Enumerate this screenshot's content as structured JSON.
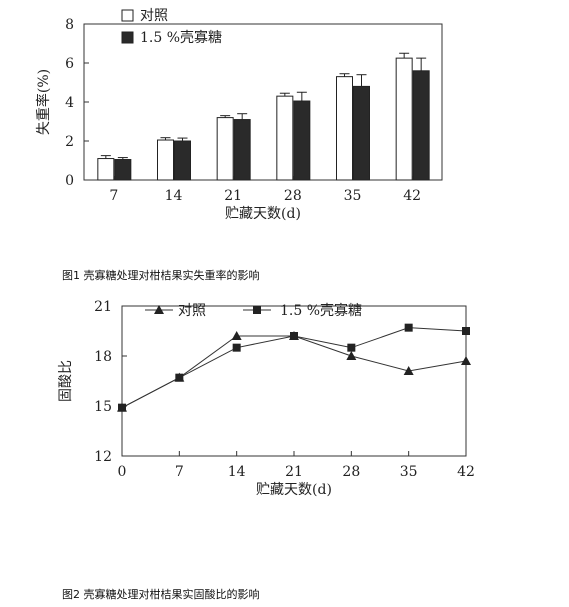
{
  "chart_data": [
    {
      "type": "bar",
      "xlabel": "贮藏天数(d)",
      "ylabel": "失重率(%)",
      "ylim": [
        0,
        8
      ],
      "yticks": [
        "0",
        "2",
        "4",
        "6",
        "8"
      ],
      "categories": [
        "7",
        "14",
        "21",
        "28",
        "35",
        "42"
      ],
      "series": [
        {
          "name": "对照",
          "values": [
            1.1,
            2.05,
            3.2,
            4.3,
            5.3,
            6.25
          ],
          "errors": [
            0.15,
            0.12,
            0.1,
            0.15,
            0.15,
            0.25
          ],
          "color": "#ffffff"
        },
        {
          "name": "1.5 %壳寡糖",
          "values": [
            1.05,
            2.0,
            3.1,
            4.05,
            4.8,
            5.6
          ],
          "errors": [
            0.1,
            0.15,
            0.3,
            0.45,
            0.6,
            0.65
          ],
          "color": "#2a2a2a"
        }
      ],
      "legend": "top-left"
    },
    {
      "type": "line",
      "xlabel": "贮藏天数(d)",
      "ylabel": "固酸比",
      "ylim": [
        12,
        21
      ],
      "yticks": [
        "12",
        "15",
        "18",
        "21"
      ],
      "xlim": [
        0,
        42
      ],
      "x": [
        0,
        7,
        14,
        21,
        28,
        35,
        42
      ],
      "series": [
        {
          "name": "对照",
          "marker": "triangle",
          "values": [
            14.9,
            16.7,
            19.2,
            19.2,
            18.0,
            17.1,
            17.7
          ]
        },
        {
          "name": "1.5 %壳寡糖",
          "marker": "square",
          "values": [
            14.9,
            16.7,
            18.5,
            19.2,
            18.5,
            19.7,
            19.5
          ]
        }
      ],
      "legend": "top"
    }
  ],
  "captions": {
    "fig1": "图1 壳寡糖处理对柑桔果实失重率的影响",
    "fig2": "图2 壳寡糖处理对柑桔果实固酸比的影响"
  }
}
